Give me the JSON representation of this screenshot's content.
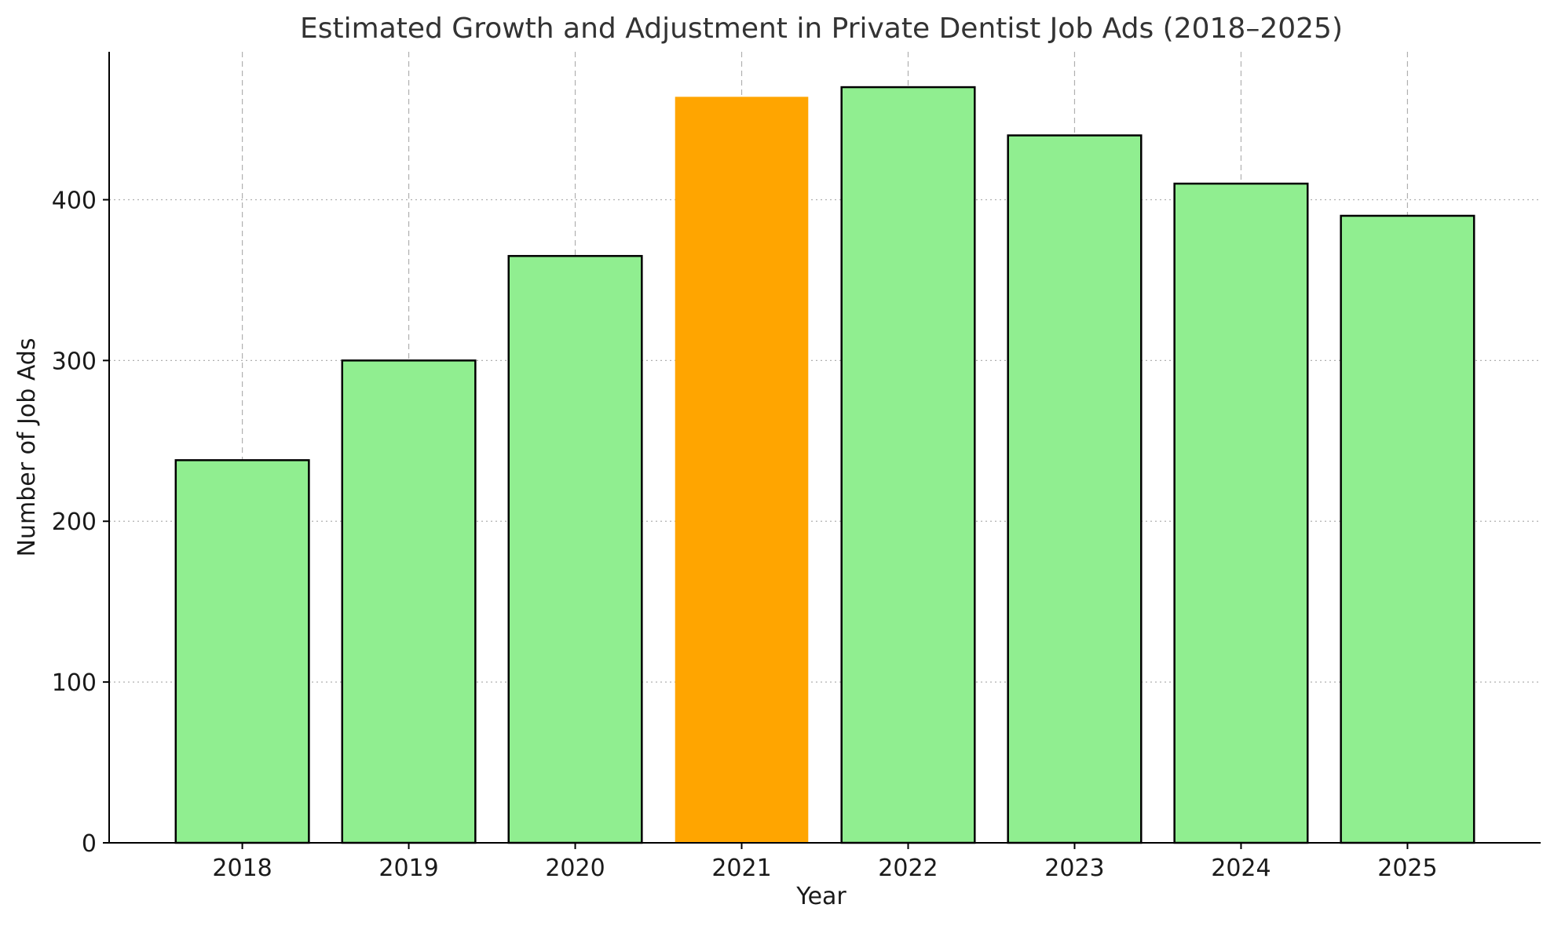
{
  "chart_data": {
    "type": "bar",
    "title": "Estimated Growth and Adjustment in Private Dentist Job Ads (2018–2025)",
    "xlabel": "Year",
    "ylabel": "Number of Job Ads",
    "categories": [
      "2018",
      "2019",
      "2020",
      "2021",
      "2022",
      "2023",
      "2024",
      "2025"
    ],
    "values": [
      238,
      300,
      365,
      464,
      470,
      440,
      410,
      390
    ],
    "highlight_index": 3,
    "ylim": [
      0,
      492
    ],
    "yticks": [
      0,
      100,
      200,
      300,
      400
    ],
    "grid": true,
    "colors": {
      "bar": "#90ee90",
      "highlight": "#ffa500",
      "edge": "#000000"
    }
  }
}
